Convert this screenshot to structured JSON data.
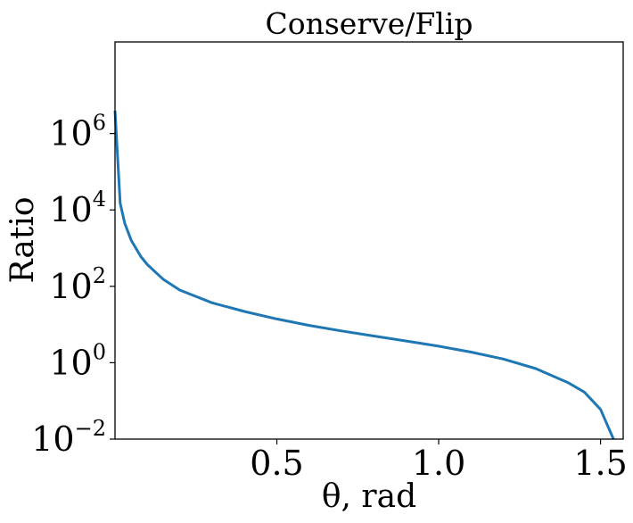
{
  "chart_data": {
    "type": "line",
    "title": "Conserve/Flip",
    "xlabel": "θ, rad",
    "ylabel": "Ratio",
    "xlim": [
      0.0,
      1.57
    ],
    "yscale": "log",
    "ylim": [
      0.01,
      250000000
    ],
    "x_ticks": [
      0.5,
      1.0,
      1.5
    ],
    "x_tick_labels": [
      "0.5",
      "1.0",
      "1.5"
    ],
    "y_ticks": [
      {
        "value": 1000000,
        "base": "10",
        "exp": "6"
      },
      {
        "value": 10000,
        "base": "10",
        "exp": "4"
      },
      {
        "value": 100,
        "base": "10",
        "exp": "2"
      },
      {
        "value": 1,
        "base": "10",
        "exp": "0"
      },
      {
        "value": 0.01,
        "base": "10",
        "exp": "−2"
      }
    ],
    "grid": false,
    "series": [
      {
        "color": "#1f77b4",
        "x": [
          0.0,
          0.016,
          0.03,
          0.05,
          0.08,
          0.1,
          0.15,
          0.2,
          0.3,
          0.4,
          0.5,
          0.6,
          0.7,
          0.8,
          0.9,
          1.0,
          1.1,
          1.2,
          1.3,
          1.4,
          1.45,
          1.5,
          1.54
        ],
        "y": [
          4000000,
          15000,
          4500,
          1600,
          600,
          370,
          150,
          80,
          37,
          22,
          14,
          9.5,
          6.8,
          5.0,
          3.7,
          2.7,
          1.9,
          1.25,
          0.7,
          0.3,
          0.17,
          0.06,
          0.01
        ]
      }
    ]
  }
}
